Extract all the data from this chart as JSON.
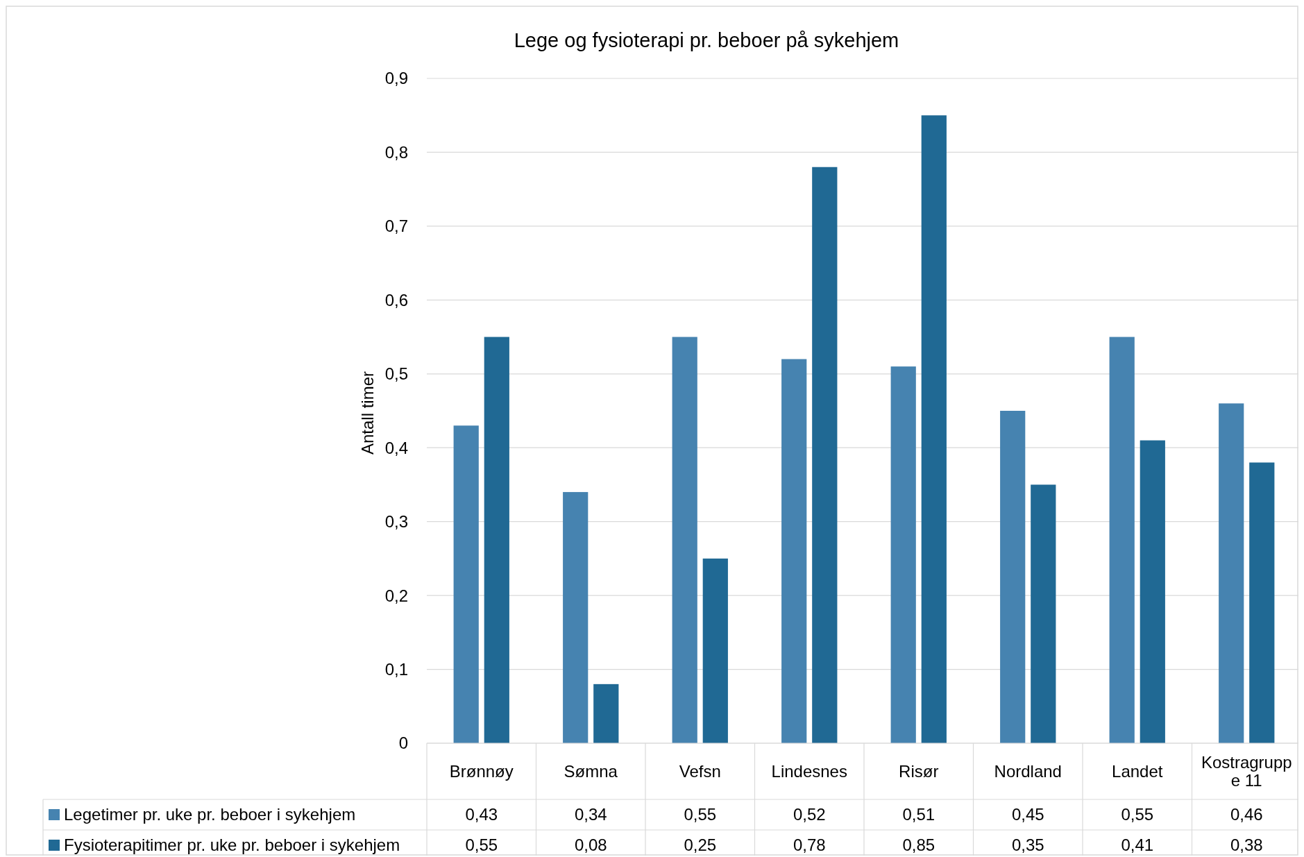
{
  "chart_data": {
    "type": "bar",
    "title": "Lege og fysioterapi pr. beboer på sykehjem",
    "ylabel": "Antall timer",
    "categories": [
      "Brønnøy",
      "Sømna",
      "Vefsn",
      "Lindesnes",
      "Risør",
      "Nordland",
      "Landet",
      "Kostragruppe 11"
    ],
    "series": [
      {
        "name": "Legetimer pr. uke pr. beboer i sykehjem",
        "color": "#4683b0",
        "values": [
          0.43,
          0.34,
          0.55,
          0.52,
          0.51,
          0.45,
          0.55,
          0.46
        ],
        "value_labels": [
          "0,43",
          "0,34",
          "0,55",
          "0,52",
          "0,51",
          "0,45",
          "0,55",
          "0,46"
        ]
      },
      {
        "name": "Fysioterapitimer pr. uke pr. beboer i sykehjem",
        "color": "#206994",
        "values": [
          0.55,
          0.08,
          0.25,
          0.78,
          0.85,
          0.35,
          0.41,
          0.38
        ],
        "value_labels": [
          "0,55",
          "0,08",
          "0,25",
          "0,78",
          "0,85",
          "0,35",
          "0,41",
          "0,38"
        ]
      }
    ],
    "ylim": [
      0,
      0.9
    ],
    "yticks": [
      {
        "value": 0,
        "label": "0"
      },
      {
        "value": 0.1,
        "label": "0,1"
      },
      {
        "value": 0.2,
        "label": "0,2"
      },
      {
        "value": 0.3,
        "label": "0,3"
      },
      {
        "value": 0.4,
        "label": "0,4"
      },
      {
        "value": 0.5,
        "label": "0,5"
      },
      {
        "value": 0.6,
        "label": "0,6"
      },
      {
        "value": 0.7,
        "label": "0,7"
      },
      {
        "value": 0.8,
        "label": "0,8"
      },
      {
        "value": 0.9,
        "label": "0,9"
      }
    ],
    "grid": "y",
    "legend": "bottom"
  }
}
